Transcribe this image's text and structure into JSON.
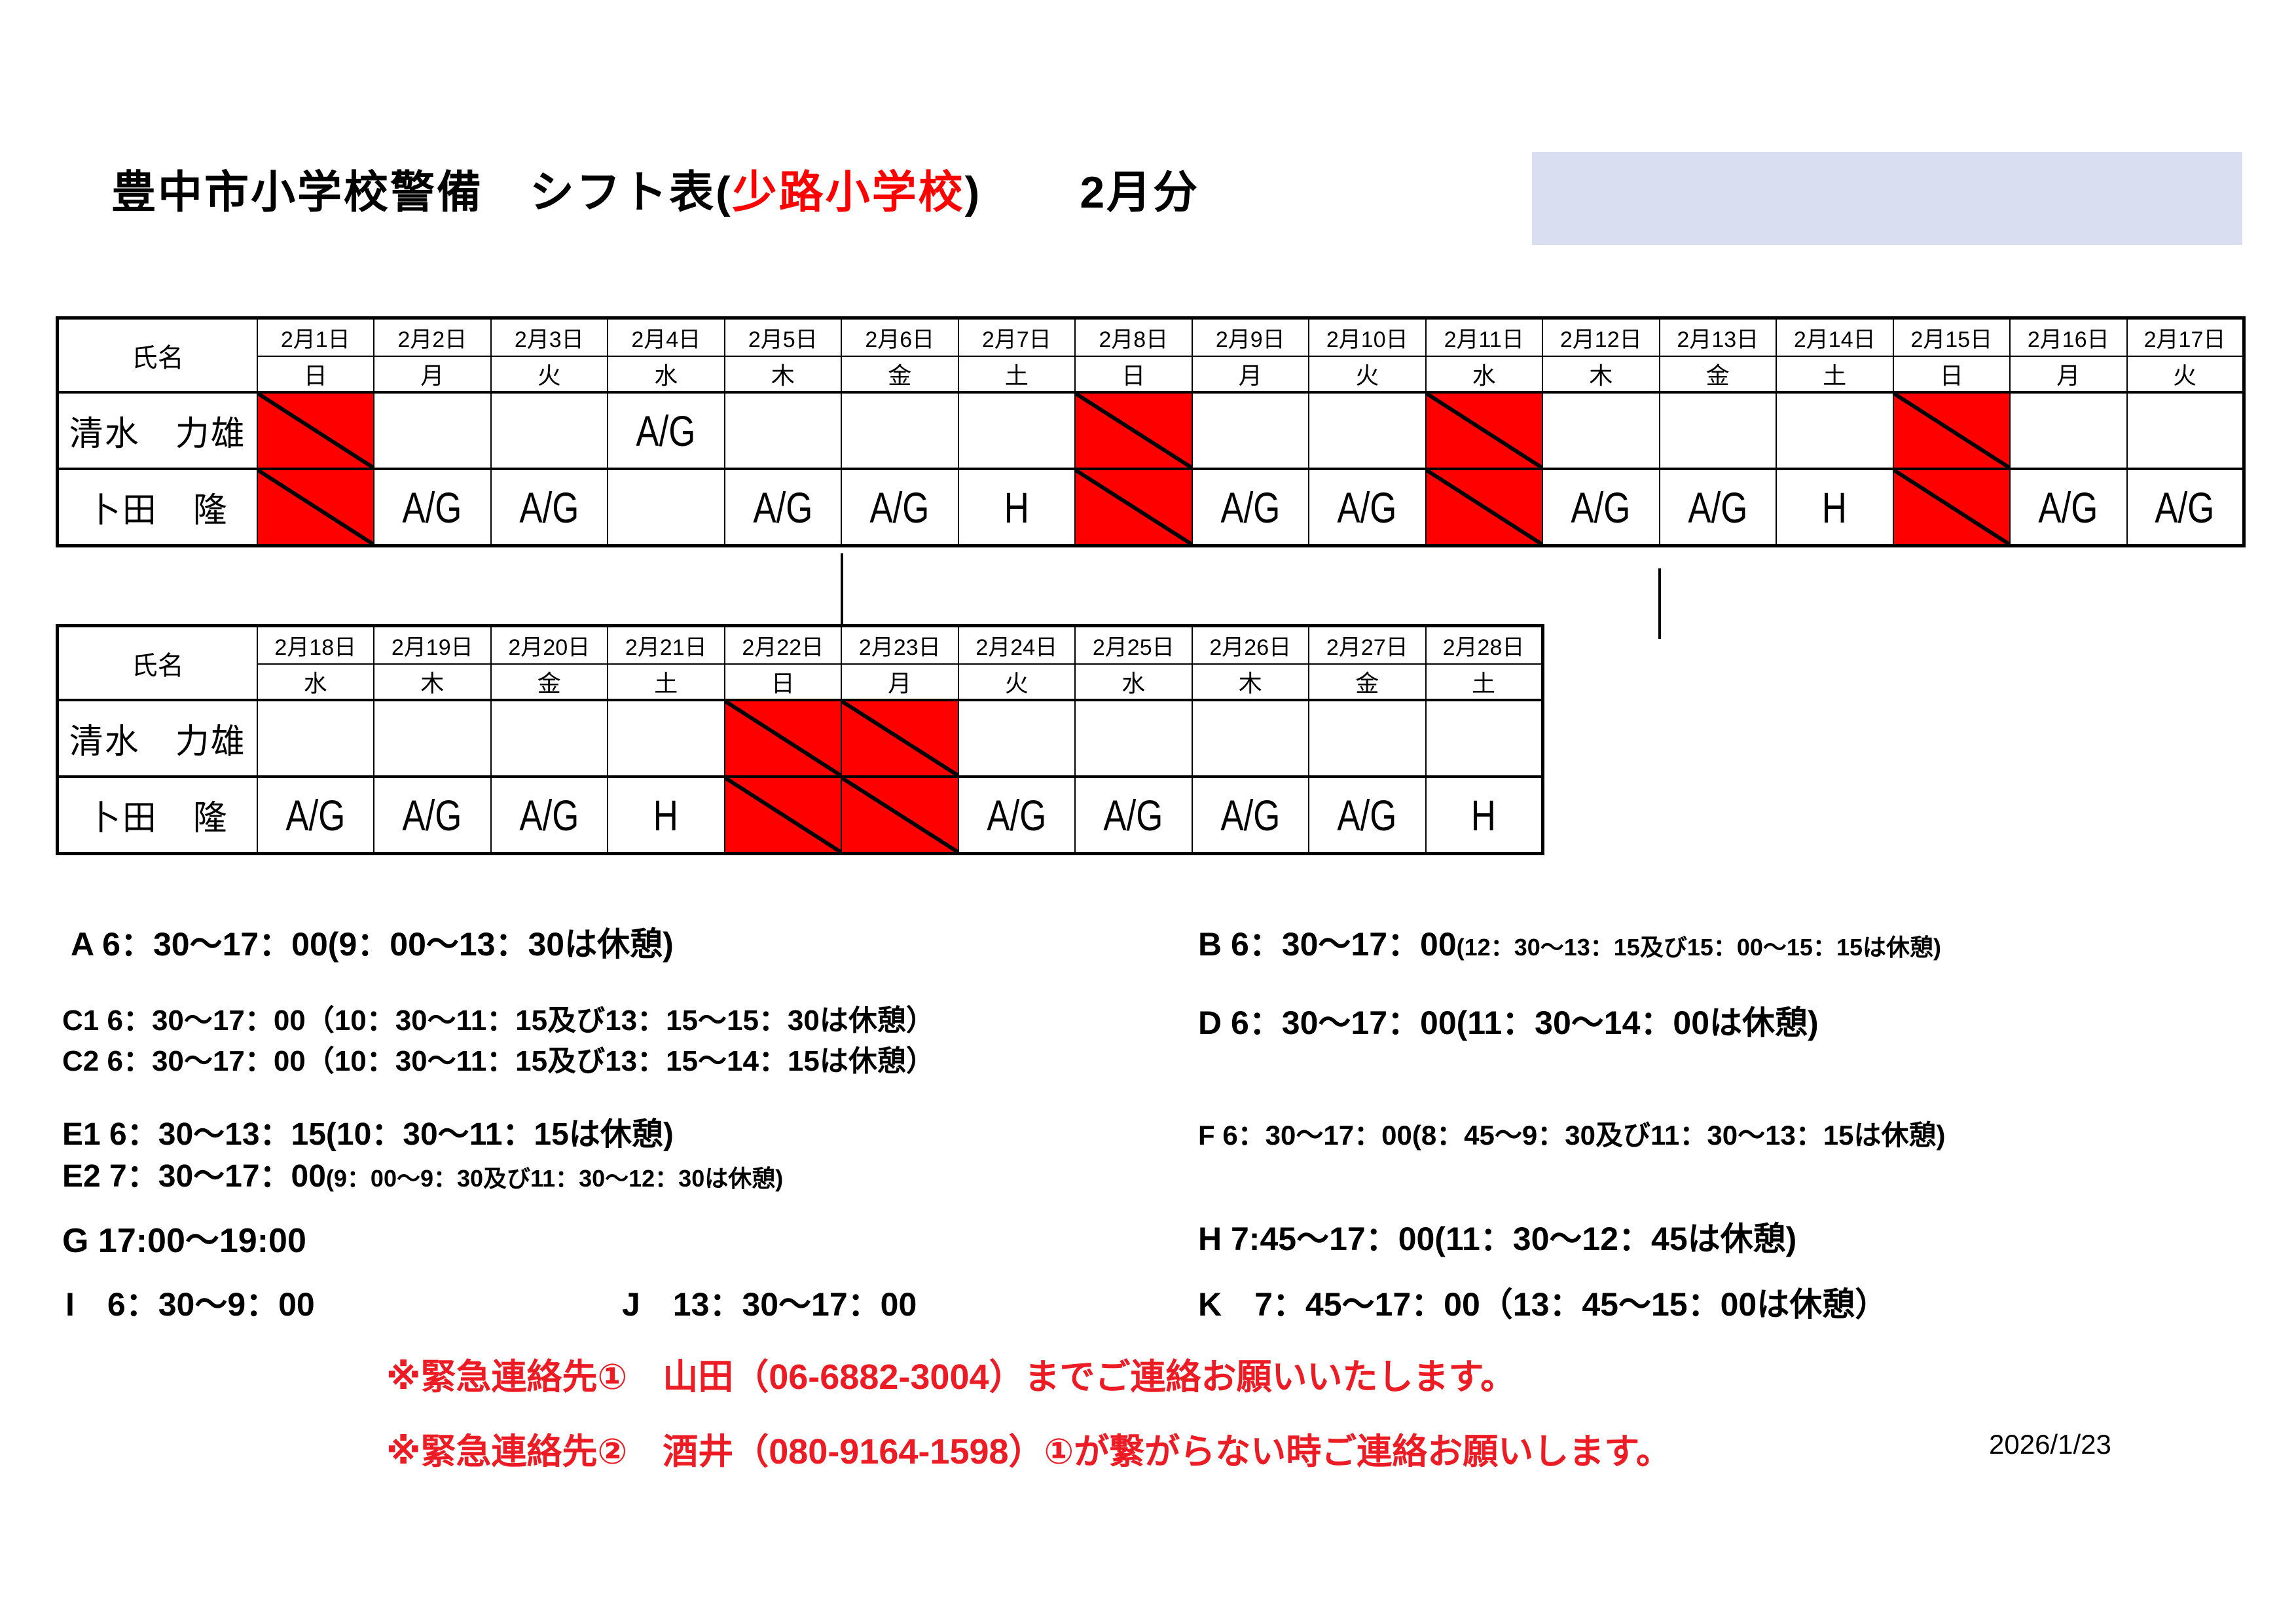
{
  "title": {
    "black_left": "豊中市小学校警備　シフト表(",
    "school_red": "少路小学校",
    "black_right": ")",
    "month": "2月分"
  },
  "schedule": {
    "name_header": "氏名",
    "off_marker": "red-diagonal-cell",
    "shift_codes": [
      "A/G",
      "H"
    ],
    "tables": [
      {
        "days": [
          {
            "date": "2月1日",
            "dow": "日"
          },
          {
            "date": "2月2日",
            "dow": "月"
          },
          {
            "date": "2月3日",
            "dow": "火"
          },
          {
            "date": "2月4日",
            "dow": "水"
          },
          {
            "date": "2月5日",
            "dow": "木"
          },
          {
            "date": "2月6日",
            "dow": "金"
          },
          {
            "date": "2月7日",
            "dow": "土"
          },
          {
            "date": "2月8日",
            "dow": "日"
          },
          {
            "date": "2月9日",
            "dow": "月"
          },
          {
            "date": "2月10日",
            "dow": "火"
          },
          {
            "date": "2月11日",
            "dow": "水"
          },
          {
            "date": "2月12日",
            "dow": "木"
          },
          {
            "date": "2月13日",
            "dow": "金"
          },
          {
            "date": "2月14日",
            "dow": "土"
          },
          {
            "date": "2月15日",
            "dow": "日"
          },
          {
            "date": "2月16日",
            "dow": "月"
          },
          {
            "date": "2月17日",
            "dow": "火"
          }
        ],
        "rows": [
          {
            "name": "清水　力雄",
            "cells": [
              "OFF",
              "",
              "",
              "A/G",
              "",
              "",
              "",
              "OFF",
              "",
              "",
              "OFF",
              "",
              "",
              "",
              "OFF",
              "",
              ""
            ]
          },
          {
            "name": "卜田　隆",
            "cells": [
              "OFF",
              "A/G",
              "A/G",
              "",
              "A/G",
              "A/G",
              "H",
              "OFF",
              "A/G",
              "A/G",
              "OFF",
              "A/G",
              "A/G",
              "H",
              "OFF",
              "A/G",
              "A/G"
            ]
          }
        ]
      },
      {
        "days": [
          {
            "date": "2月18日",
            "dow": "水"
          },
          {
            "date": "2月19日",
            "dow": "木"
          },
          {
            "date": "2月20日",
            "dow": "金"
          },
          {
            "date": "2月21日",
            "dow": "土"
          },
          {
            "date": "2月22日",
            "dow": "日"
          },
          {
            "date": "2月23日",
            "dow": "月"
          },
          {
            "date": "2月24日",
            "dow": "火"
          },
          {
            "date": "2月25日",
            "dow": "水"
          },
          {
            "date": "2月26日",
            "dow": "木"
          },
          {
            "date": "2月27日",
            "dow": "金"
          },
          {
            "date": "2月28日",
            "dow": "土"
          }
        ],
        "rows": [
          {
            "name": "清水　力雄",
            "cells": [
              "",
              "",
              "",
              "",
              "OFF",
              "OFF",
              "",
              "",
              "",
              "",
              ""
            ]
          },
          {
            "name": "卜田　隆",
            "cells": [
              "A/G",
              "A/G",
              "A/G",
              "H",
              "OFF",
              "OFF",
              "A/G",
              "A/G",
              "A/G",
              "A/G",
              "H"
            ]
          }
        ]
      }
    ]
  },
  "legend": {
    "a": "A 6：30～17：00(9：00～13：30は休憩)",
    "b_main": "B 6：30～17：00",
    "b_small": "(12：30～13：15及び15：00～15：15は休憩)",
    "c1": "C1 6：30～17：00（10：30～11：15及び13：15～15：30は休憩）",
    "c2": "C2 6：30～17：00（10：30～11：15及び13：15～14：15は休憩）",
    "d": "D 6：30～17：00(11：30～14：00は休憩)",
    "e1": "E1 6：30～13：15(10：30～11：15は休憩)",
    "e2_main": "E2 7：30～17：00",
    "e2_small": "(9：00～9：30及び11：30～12：30は休憩)",
    "f": "F 6：30～17：00(8：45～9：30及び11：30～13：15は休憩)",
    "g": "G 17:00～19:00",
    "h": "H 7:45～17：00(11：30～12：45は休憩)",
    "i": "I　6：30～9：00",
    "j": "J　13：30～17：00",
    "k": "K　7：45～17：00（13：45～15：00は休憩）"
  },
  "notes": {
    "line1": "※緊急連絡先①　山田（06-6882-3004）までご連絡お願いいたします。",
    "line2": "※緊急連絡先②　酒井（080-9164-1598）①が繋がらない時ご連絡お願いします。"
  },
  "footer_date": "2026/1/23",
  "colors": {
    "holiday_cell_red": "#ff0000",
    "title_school_red": "#ff0000",
    "note_red": "#ed1c24",
    "highlight_box_blue": "#d9def1"
  }
}
